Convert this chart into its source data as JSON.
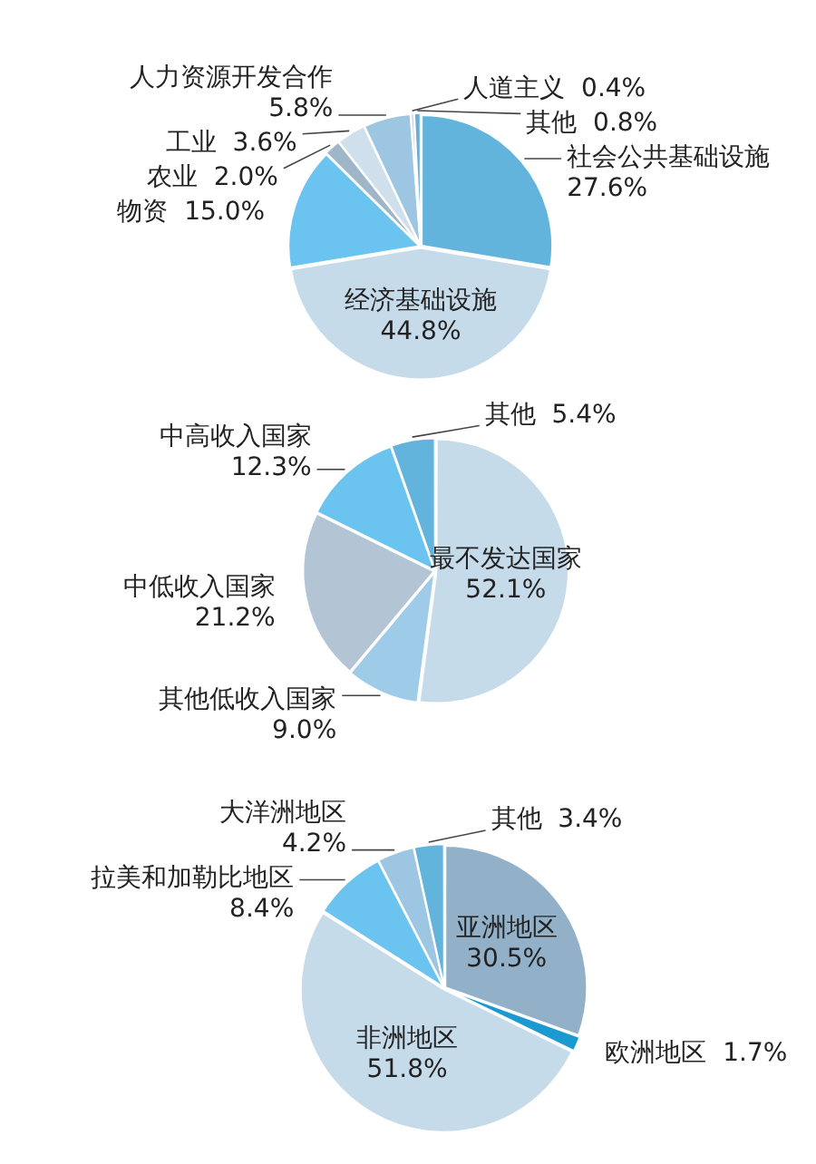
{
  "chart_data": [
    {
      "type": "pie",
      "categories": [
        "社会公共基础设施",
        "经济基础设施",
        "物资",
        "农业",
        "工业",
        "人力资源开发合作",
        "人道主义",
        "其他"
      ],
      "values": [
        27.6,
        44.8,
        15.0,
        2.0,
        3.6,
        5.8,
        0.4,
        0.8
      ],
      "colors": [
        "#62b4dd",
        "#c6dbea",
        "#6bc3ef",
        "#9fb5c8",
        "#cfe0ec",
        "#9cc6e2",
        "#b5c9da",
        "#6aaed8"
      ],
      "value_labels": [
        "27.6%",
        "44.8%",
        "15.0%",
        "2.0%",
        "3.6%",
        "5.8%",
        "0.4%",
        "0.8%"
      ]
    },
    {
      "type": "pie",
      "categories": [
        "最不发达国家",
        "其他低收入国家",
        "中低收入国家",
        "中高收入国家",
        "其他"
      ],
      "values": [
        52.1,
        9.0,
        21.2,
        12.3,
        5.4
      ],
      "colors": [
        "#c6dbea",
        "#9ecbe8",
        "#b3c5d5",
        "#6bc3ef",
        "#62b4dd"
      ],
      "value_labels": [
        "52.1%",
        "9.0%",
        "21.2%",
        "12.3%",
        "5.4%"
      ]
    },
    {
      "type": "pie",
      "categories": [
        "亚洲地区",
        "欧洲地区",
        "非洲地区",
        "拉美和加勒比地区",
        "大洋洲地区",
        "其他"
      ],
      "values": [
        30.5,
        1.7,
        51.8,
        8.4,
        4.2,
        3.4
      ],
      "colors": [
        "#92b1c9",
        "#1b9ad2",
        "#c6dbea",
        "#6bc3ef",
        "#9cc6e2",
        "#62b4dd"
      ],
      "value_labels": [
        "30.5%",
        "1.7%",
        "51.8%",
        "8.4%",
        "4.2%",
        "3.4%"
      ]
    }
  ]
}
